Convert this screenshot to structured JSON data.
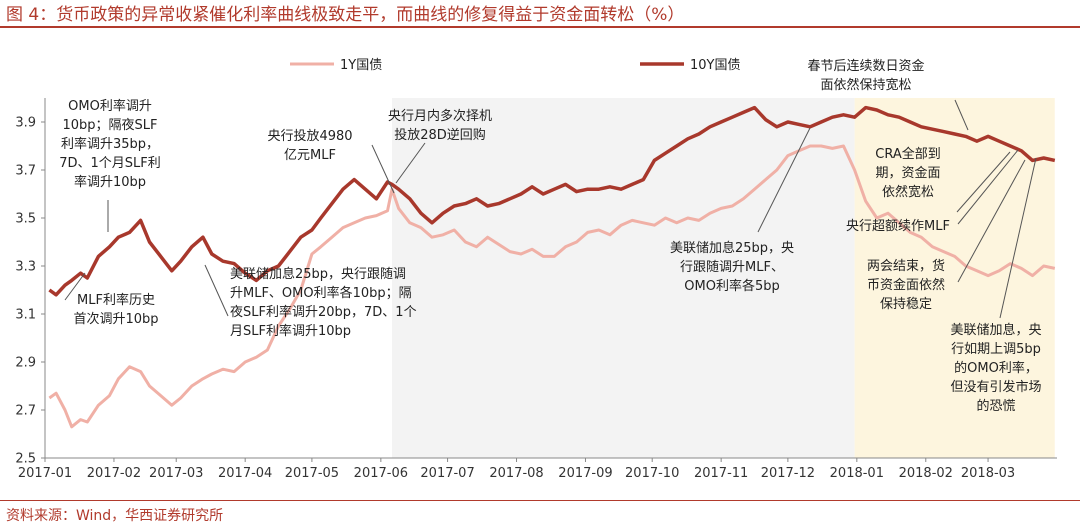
{
  "title": "图 4：货币政策的异常收紧催化利率曲线极致走平，而曲线的修复得益于资金面转松（%）",
  "source": "资料来源：Wind，华西证券研究所",
  "colors": {
    "y1": "#f0b0a6",
    "y10": "#a8382c",
    "accent": "#b13a2c",
    "shade_grey": "#f3f3f3",
    "shade_yellow": "#fdf5de"
  },
  "chart_data": {
    "type": "line",
    "ylim": [
      2.5,
      4.0
    ],
    "yticks": [
      "2.5",
      "2.7",
      "2.9",
      "3.1",
      "3.3",
      "3.5",
      "3.7",
      "3.9"
    ],
    "xticks": [
      "2017-01",
      "2017-02",
      "2017-03",
      "2017-04",
      "2017-05",
      "2017-06",
      "2017-07",
      "2017-08",
      "2017-09",
      "2017-10",
      "2017-11",
      "2017-12",
      "2018-01",
      "2018-02",
      "2018-03"
    ],
    "legend": [
      "1Y国债",
      "10Y国债"
    ],
    "series": [
      {
        "name": "1Y国债",
        "x": [
          "2017-01-03",
          "2017-01-06",
          "2017-01-10",
          "2017-01-13",
          "2017-01-17",
          "2017-01-20",
          "2017-01-25",
          "2017-01-30",
          "2017-02-03",
          "2017-02-08",
          "2017-02-13",
          "2017-02-17",
          "2017-02-22",
          "2017-02-27",
          "2017-03-03",
          "2017-03-08",
          "2017-03-13",
          "2017-03-17",
          "2017-03-22",
          "2017-03-27",
          "2017-04-01",
          "2017-04-06",
          "2017-04-11",
          "2017-04-16",
          "2017-04-21",
          "2017-04-26",
          "2017-05-01",
          "2017-05-05",
          "2017-05-10",
          "2017-05-15",
          "2017-05-20",
          "2017-05-25",
          "2017-05-30",
          "2017-06-04",
          "2017-06-06",
          "2017-06-09",
          "2017-06-14",
          "2017-06-19",
          "2017-06-24",
          "2017-06-29",
          "2017-07-04",
          "2017-07-09",
          "2017-07-14",
          "2017-07-19",
          "2017-07-24",
          "2017-07-29",
          "2017-08-03",
          "2017-08-08",
          "2017-08-13",
          "2017-08-18",
          "2017-08-23",
          "2017-08-28",
          "2017-09-02",
          "2017-09-07",
          "2017-09-12",
          "2017-09-17",
          "2017-09-22",
          "2017-09-27",
          "2017-10-02",
          "2017-10-07",
          "2017-10-12",
          "2017-10-17",
          "2017-10-22",
          "2017-10-27",
          "2017-11-01",
          "2017-11-06",
          "2017-11-11",
          "2017-11-16",
          "2017-11-21",
          "2017-11-26",
          "2017-12-01",
          "2017-12-06",
          "2017-12-11",
          "2017-12-16",
          "2017-12-21",
          "2017-12-26",
          "2017-12-31",
          "2018-01-05",
          "2018-01-10",
          "2018-01-15",
          "2018-01-20",
          "2018-01-25",
          "2018-01-30",
          "2018-02-04",
          "2018-02-09",
          "2018-02-14",
          "2018-02-19",
          "2018-02-24",
          "2018-03-01",
          "2018-03-06",
          "2018-03-11",
          "2018-03-16",
          "2018-03-21",
          "2018-03-26",
          "2018-03-31"
        ],
        "values": [
          2.75,
          2.77,
          2.7,
          2.63,
          2.66,
          2.65,
          2.72,
          2.76,
          2.83,
          2.88,
          2.86,
          2.8,
          2.76,
          2.72,
          2.75,
          2.8,
          2.83,
          2.85,
          2.87,
          2.86,
          2.9,
          2.92,
          2.95,
          3.05,
          3.12,
          3.2,
          3.35,
          3.38,
          3.42,
          3.46,
          3.48,
          3.5,
          3.51,
          3.53,
          3.62,
          3.54,
          3.48,
          3.46,
          3.42,
          3.43,
          3.45,
          3.4,
          3.38,
          3.42,
          3.39,
          3.36,
          3.35,
          3.37,
          3.34,
          3.34,
          3.38,
          3.4,
          3.44,
          3.45,
          3.43,
          3.47,
          3.49,
          3.48,
          3.47,
          3.5,
          3.48,
          3.5,
          3.49,
          3.52,
          3.54,
          3.55,
          3.58,
          3.62,
          3.66,
          3.7,
          3.76,
          3.78,
          3.8,
          3.8,
          3.79,
          3.8,
          3.7,
          3.57,
          3.5,
          3.52,
          3.48,
          3.44,
          3.42,
          3.38,
          3.36,
          3.34,
          3.3,
          3.28,
          3.26,
          3.28,
          3.31,
          3.29,
          3.26,
          3.3,
          3.29
        ]
      },
      {
        "name": "10Y国债",
        "x": [
          "2017-01-03",
          "2017-01-06",
          "2017-01-10",
          "2017-01-13",
          "2017-01-17",
          "2017-01-20",
          "2017-01-25",
          "2017-01-30",
          "2017-02-03",
          "2017-02-08",
          "2017-02-13",
          "2017-02-17",
          "2017-02-22",
          "2017-02-27",
          "2017-03-03",
          "2017-03-08",
          "2017-03-13",
          "2017-03-17",
          "2017-03-22",
          "2017-03-27",
          "2017-04-01",
          "2017-04-06",
          "2017-04-11",
          "2017-04-16",
          "2017-04-21",
          "2017-04-26",
          "2017-05-01",
          "2017-05-05",
          "2017-05-10",
          "2017-05-15",
          "2017-05-20",
          "2017-05-25",
          "2017-05-30",
          "2017-06-04",
          "2017-06-06",
          "2017-06-09",
          "2017-06-14",
          "2017-06-19",
          "2017-06-24",
          "2017-06-29",
          "2017-07-04",
          "2017-07-09",
          "2017-07-14",
          "2017-07-19",
          "2017-07-24",
          "2017-07-29",
          "2017-08-03",
          "2017-08-08",
          "2017-08-13",
          "2017-08-18",
          "2017-08-23",
          "2017-08-28",
          "2017-09-02",
          "2017-09-07",
          "2017-09-12",
          "2017-09-17",
          "2017-09-22",
          "2017-09-27",
          "2017-10-02",
          "2017-10-07",
          "2017-10-12",
          "2017-10-17",
          "2017-10-22",
          "2017-10-27",
          "2017-11-01",
          "2017-11-06",
          "2017-11-11",
          "2017-11-16",
          "2017-11-21",
          "2017-11-26",
          "2017-12-01",
          "2017-12-06",
          "2017-12-11",
          "2017-12-16",
          "2017-12-21",
          "2017-12-26",
          "2017-12-31",
          "2018-01-05",
          "2018-01-10",
          "2018-01-15",
          "2018-01-20",
          "2018-01-25",
          "2018-01-30",
          "2018-02-04",
          "2018-02-09",
          "2018-02-14",
          "2018-02-19",
          "2018-02-24",
          "2018-03-01",
          "2018-03-06",
          "2018-03-11",
          "2018-03-16",
          "2018-03-21",
          "2018-03-26",
          "2018-03-31"
        ],
        "values": [
          3.2,
          3.18,
          3.22,
          3.24,
          3.27,
          3.25,
          3.34,
          3.38,
          3.42,
          3.44,
          3.49,
          3.4,
          3.34,
          3.28,
          3.32,
          3.38,
          3.42,
          3.35,
          3.32,
          3.31,
          3.27,
          3.24,
          3.28,
          3.3,
          3.36,
          3.42,
          3.45,
          3.5,
          3.56,
          3.62,
          3.66,
          3.62,
          3.58,
          3.65,
          3.64,
          3.62,
          3.58,
          3.52,
          3.48,
          3.52,
          3.55,
          3.56,
          3.58,
          3.55,
          3.56,
          3.58,
          3.6,
          3.63,
          3.6,
          3.62,
          3.64,
          3.61,
          3.62,
          3.62,
          3.63,
          3.62,
          3.64,
          3.66,
          3.74,
          3.77,
          3.8,
          3.83,
          3.85,
          3.88,
          3.9,
          3.92,
          3.94,
          3.96,
          3.91,
          3.88,
          3.9,
          3.89,
          3.88,
          3.9,
          3.92,
          3.93,
          3.92,
          3.96,
          3.95,
          3.93,
          3.92,
          3.9,
          3.88,
          3.87,
          3.86,
          3.85,
          3.84,
          3.82,
          3.84,
          3.82,
          3.8,
          3.78,
          3.74,
          3.75,
          3.74
        ]
      }
    ],
    "shaded_regions": [
      {
        "from": "2017-06-06",
        "to": "2017-12-31",
        "color": "grey"
      },
      {
        "from": "2017-12-31",
        "to": "2018-03-31",
        "color": "yellow"
      }
    ],
    "annotations": [
      {
        "text_lines": [
          "OMO利率调升",
          "10bp；隔夜SLF",
          "利率调升35bp，",
          "7D、1个月SLF利",
          "率调升10bp"
        ],
        "align": "middle",
        "label": [
          110,
          110
        ],
        "arrow_from": [
          108,
          200
        ],
        "arrow_to": [
          108,
          232
        ]
      },
      {
        "text_lines": [
          "MLF利率历史",
          "首次调升10bp"
        ],
        "align": "middle",
        "label": [
          116,
          304
        ],
        "arrow_from": [
          65,
          300
        ],
        "arrow_to": [
          85,
          273
        ]
      },
      {
        "text_lines": [
          "央行投放4980",
          "亿元MLF"
        ],
        "align": "middle",
        "label": [
          310,
          140
        ],
        "arrow_from": [
          372,
          145
        ],
        "arrow_to": [
          394,
          193
        ]
      },
      {
        "text_lines": [
          "央行月内多次择机",
          "投放28D逆回购"
        ],
        "align": "middle",
        "label": [
          440,
          120
        ],
        "arrow_from": [
          425,
          143
        ],
        "arrow_to": [
          396,
          183
        ]
      },
      {
        "text_lines": [
          "美联储加息25bp，央行跟随调",
          "升MLF、OMO利率各10bp；隔",
          "夜SLF利率调升20bp，7D、1个",
          "月SLF利率调升10bp"
        ],
        "align": "start",
        "label": [
          230,
          278
        ],
        "arrow_from": [
          228,
          316
        ],
        "arrow_to": [
          205,
          265
        ]
      },
      {
        "text_lines": [
          "美联储加息25bp，央",
          "行跟随调升MLF、",
          "OMO利率各5bp"
        ],
        "align": "middle",
        "label": [
          732,
          252
        ],
        "arrow_from": [
          758,
          232
        ],
        "arrow_to": [
          810,
          128
        ]
      },
      {
        "text_lines": [
          "春节后连续数日资金",
          "面依然保持宽松"
        ],
        "align": "middle",
        "label": [
          866,
          70
        ],
        "arrow_from": [
          955,
          100
        ],
        "arrow_to": [
          968,
          130
        ]
      },
      {
        "text_lines": [
          "CRA全部到",
          "期，资金面",
          "依然宽松"
        ],
        "align": "middle",
        "label": [
          908,
          158
        ],
        "arrow_from": [
          957,
          212
        ],
        "arrow_to": [
          1010,
          152
        ]
      },
      {
        "text_lines": [
          "央行超额续作MLF"
        ],
        "align": "middle",
        "label": [
          898,
          230
        ],
        "arrow_from": [
          958,
          224
        ],
        "arrow_to": [
          1018,
          150
        ]
      },
      {
        "text_lines": [
          "两会结束，货",
          "币资金面依然",
          "保持稳定"
        ],
        "align": "middle",
        "label": [
          906,
          270
        ],
        "arrow_from": [
          958,
          282
        ],
        "arrow_to": [
          1025,
          160
        ]
      },
      {
        "text_lines": [
          "美联储加息，央",
          "行如期上调5bp",
          "的OMO利率，",
          "但没有引发市场",
          "的恐慌"
        ],
        "align": "middle",
        "label": [
          996,
          334
        ],
        "arrow_from": [
          1000,
          318
        ],
        "arrow_to": [
          1036,
          158
        ]
      }
    ]
  }
}
